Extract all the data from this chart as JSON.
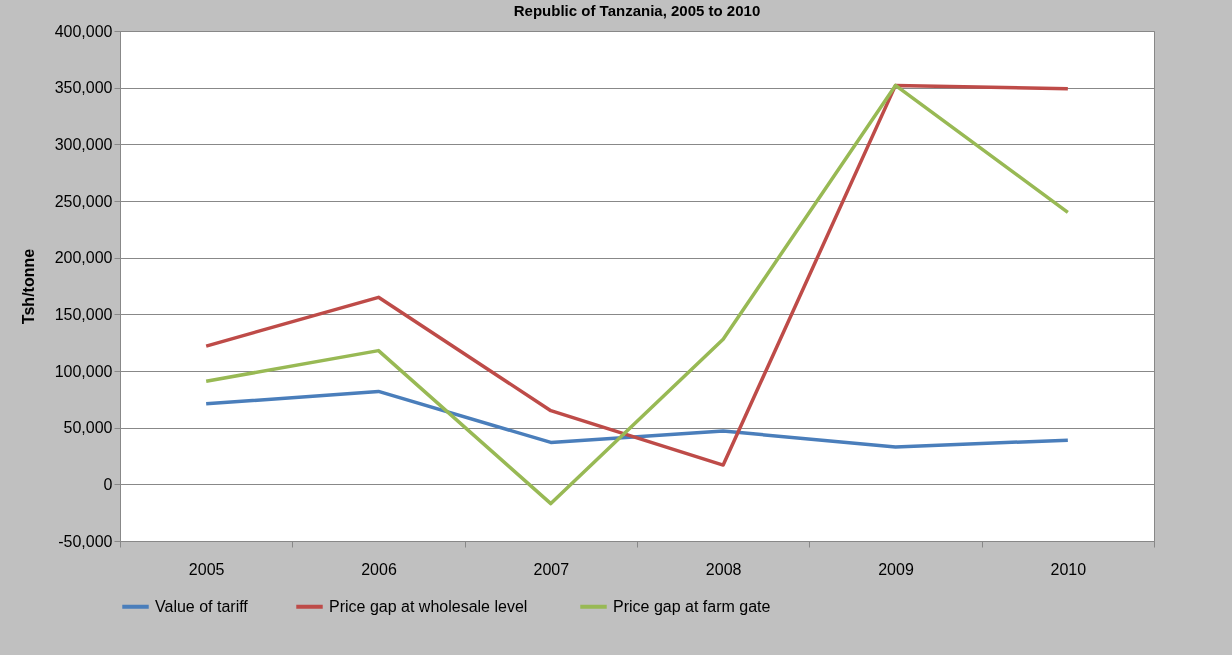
{
  "chart_data": {
    "type": "line",
    "title": "Republic of Tanzania, 2005 to 2010",
    "ylabel": "Tsh/tonne",
    "categories": [
      "2005",
      "2006",
      "2007",
      "2008",
      "2009",
      "2010"
    ],
    "series": [
      {
        "name": "Value of tariff",
        "color": "#4a7ebb",
        "values": [
          71000,
          82000,
          37000,
          47000,
          33000,
          39000
        ]
      },
      {
        "name": "Price gap at wholesale  level",
        "color": "#be4b48",
        "values": [
          122000,
          165000,
          65000,
          17000,
          352000,
          349000
        ]
      },
      {
        "name": "Price gap at farm gate",
        "color": "#98b954",
        "values": [
          91000,
          118000,
          -17000,
          128000,
          352000,
          240000
        ]
      }
    ],
    "ylim": [
      -50000,
      400000
    ],
    "yticks": [
      {
        "value": -50000,
        "label": "-50,000"
      },
      0,
      {
        "value": 50000,
        "label": "50,000"
      },
      {
        "value": 100000,
        "label": "100,000"
      },
      {
        "value": 150000,
        "label": "150,000"
      },
      {
        "value": 200000,
        "label": "200,000"
      },
      {
        "value": 250000,
        "label": "250,000"
      },
      {
        "value": 300000,
        "label": "300,000"
      },
      {
        "value": 350000,
        "label": "350,000"
      },
      {
        "value": 400000,
        "label": "400,000"
      }
    ],
    "grid": "y",
    "legend": "bottom",
    "marker": "none",
    "line_style": "solid"
  }
}
